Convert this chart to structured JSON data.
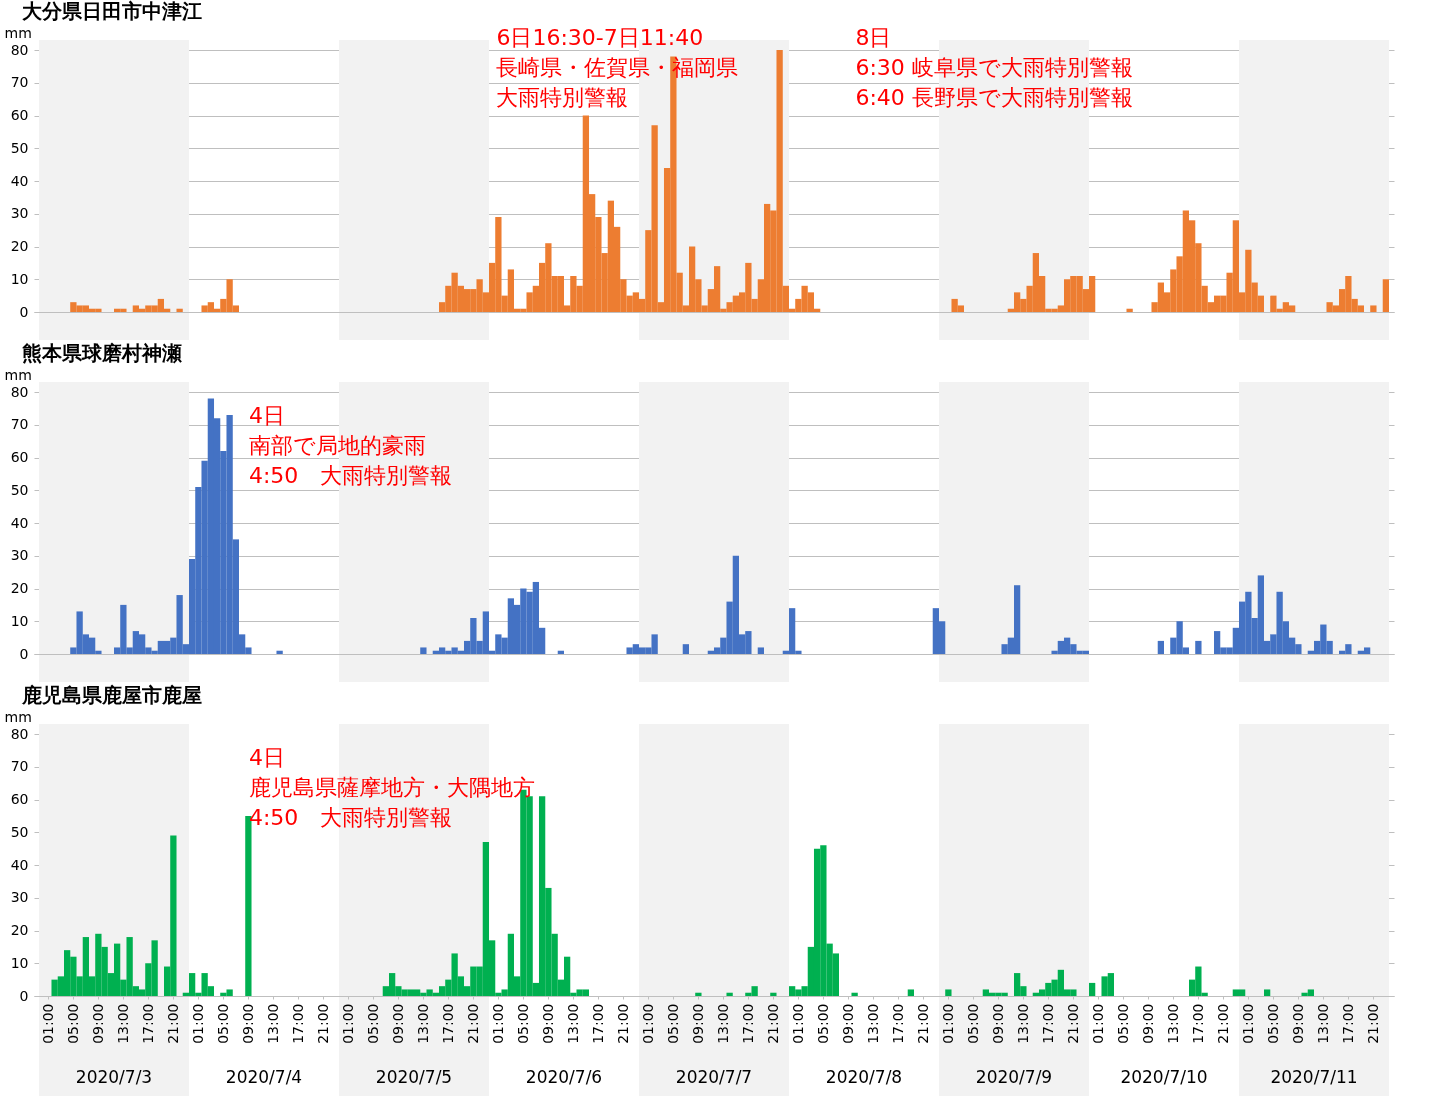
{
  "chart_data": [
    {
      "type": "bar",
      "title": "大分県日田市中津江",
      "ylabel": "mm",
      "grid": "y",
      "tick_labels": "y",
      "x": [
        "2020-07-03T00:00",
        "2020-07-03T01:00",
        "2020-07-03T02:00",
        "2020-07-03T03:00",
        "2020-07-03T04:00",
        "2020-07-03T05:00",
        "2020-07-03T06:00",
        "2020-07-03T07:00",
        "2020-07-03T08:00",
        "2020-07-03T09:00",
        "2020-07-03T10:00",
        "2020-07-03T11:00",
        "2020-07-03T12:00",
        "2020-07-03T13:00",
        "2020-07-03T14:00",
        "2020-07-03T15:00",
        "2020-07-03T16:00",
        "2020-07-03T17:00",
        "2020-07-03T18:00",
        "2020-07-03T19:00",
        "2020-07-03T20:00",
        "2020-07-03T21:00",
        "2020-07-03T22:00",
        "2020-07-03T23:00",
        "2020-07-04T00:00",
        "2020-07-04T01:00",
        "2020-07-04T02:00",
        "2020-07-04T03:00",
        "2020-07-04T04:00",
        "2020-07-04T05:00",
        "2020-07-04T06:00",
        "2020-07-04T07:00",
        "2020-07-04T08:00",
        "2020-07-04T09:00",
        "2020-07-04T10:00",
        "2020-07-04T11:00",
        "2020-07-04T12:00",
        "2020-07-04T13:00",
        "2020-07-04T14:00",
        "2020-07-04T15:00",
        "2020-07-04T16:00",
        "2020-07-04T17:00",
        "2020-07-04T18:00",
        "2020-07-04T19:00",
        "2020-07-04T20:00",
        "2020-07-04T21:00",
        "2020-07-04T22:00",
        "2020-07-04T23:00",
        "2020-07-05T00:00",
        "2020-07-05T01:00",
        "2020-07-05T02:00",
        "2020-07-05T03:00",
        "2020-07-05T04:00",
        "2020-07-05T05:00",
        "2020-07-05T06:00",
        "2020-07-05T07:00",
        "2020-07-05T08:00",
        "2020-07-05T09:00",
        "2020-07-05T10:00",
        "2020-07-05T11:00",
        "2020-07-05T12:00",
        "2020-07-05T13:00",
        "2020-07-05T14:00",
        "2020-07-05T15:00",
        "2020-07-05T16:00",
        "2020-07-05T17:00",
        "2020-07-05T18:00",
        "2020-07-05T19:00",
        "2020-07-05T20:00",
        "2020-07-05T21:00",
        "2020-07-05T22:00",
        "2020-07-05T23:00",
        "2020-07-06T00:00",
        "2020-07-06T01:00",
        "2020-07-06T02:00",
        "2020-07-06T03:00",
        "2020-07-06T04:00",
        "2020-07-06T05:00",
        "2020-07-06T06:00",
        "2020-07-06T07:00",
        "2020-07-06T08:00",
        "2020-07-06T09:00",
        "2020-07-06T10:00",
        "2020-07-06T11:00",
        "2020-07-06T12:00",
        "2020-07-06T13:00",
        "2020-07-06T14:00",
        "2020-07-06T15:00",
        "2020-07-06T16:00",
        "2020-07-06T17:00",
        "2020-07-06T18:00",
        "2020-07-06T19:00",
        "2020-07-06T20:00",
        "2020-07-06T21:00",
        "2020-07-06T22:00",
        "2020-07-06T23:00",
        "2020-07-07T00:00",
        "2020-07-07T01:00",
        "2020-07-07T02:00",
        "2020-07-07T03:00",
        "2020-07-07T04:00",
        "2020-07-07T05:00",
        "2020-07-07T06:00",
        "2020-07-07T07:00",
        "2020-07-07T08:00",
        "2020-07-07T09:00",
        "2020-07-07T10:00",
        "2020-07-07T11:00",
        "2020-07-07T12:00",
        "2020-07-07T13:00",
        "2020-07-07T14:00",
        "2020-07-07T15:00",
        "2020-07-07T16:00",
        "2020-07-07T17:00",
        "2020-07-07T18:00",
        "2020-07-07T19:00",
        "2020-07-07T20:00",
        "2020-07-07T21:00",
        "2020-07-07T22:00",
        "2020-07-07T23:00",
        "2020-07-08T00:00",
        "2020-07-08T01:00",
        "2020-07-08T02:00",
        "2020-07-08T03:00",
        "2020-07-08T04:00",
        "2020-07-08T05:00",
        "2020-07-08T06:00",
        "2020-07-08T07:00",
        "2020-07-08T08:00",
        "2020-07-08T09:00",
        "2020-07-08T10:00",
        "2020-07-08T11:00",
        "2020-07-08T12:00",
        "2020-07-08T13:00",
        "2020-07-08T14:00",
        "2020-07-08T15:00",
        "2020-07-08T16:00",
        "2020-07-08T17:00",
        "2020-07-08T18:00",
        "2020-07-08T19:00",
        "2020-07-08T20:00",
        "2020-07-08T21:00",
        "2020-07-08T22:00",
        "2020-07-08T23:00",
        "2020-07-09T00:00",
        "2020-07-09T01:00",
        "2020-07-09T02:00",
        "2020-07-09T03:00",
        "2020-07-09T04:00",
        "2020-07-09T05:00",
        "2020-07-09T06:00",
        "2020-07-09T07:00",
        "2020-07-09T08:00",
        "2020-07-09T09:00",
        "2020-07-09T10:00",
        "2020-07-09T11:00",
        "2020-07-09T12:00",
        "2020-07-09T13:00",
        "2020-07-09T14:00",
        "2020-07-09T15:00",
        "2020-07-09T16:00",
        "2020-07-09T17:00",
        "2020-07-09T18:00",
        "2020-07-09T19:00",
        "2020-07-09T20:00",
        "2020-07-09T21:00",
        "2020-07-09T22:00",
        "2020-07-09T23:00",
        "2020-07-10T00:00",
        "2020-07-10T01:00",
        "2020-07-10T02:00",
        "2020-07-10T03:00",
        "2020-07-10T04:00",
        "2020-07-10T05:00",
        "2020-07-10T06:00",
        "2020-07-10T07:00",
        "2020-07-10T08:00",
        "2020-07-10T09:00",
        "2020-07-10T10:00",
        "2020-07-10T11:00",
        "2020-07-10T12:00",
        "2020-07-10T13:00",
        "2020-07-10T14:00",
        "2020-07-10T15:00",
        "2020-07-10T16:00",
        "2020-07-10T17:00",
        "2020-07-10T18:00",
        "2020-07-10T19:00",
        "2020-07-10T20:00",
        "2020-07-10T21:00",
        "2020-07-10T22:00",
        "2020-07-10T23:00",
        "2020-07-11T00:00",
        "2020-07-11T01:00",
        "2020-07-11T02:00",
        "2020-07-11T03:00",
        "2020-07-11T04:00",
        "2020-07-11T05:00",
        "2020-07-11T06:00",
        "2020-07-11T07:00",
        "2020-07-11T08:00",
        "2020-07-11T09:00",
        "2020-07-11T10:00",
        "2020-07-11T11:00",
        "2020-07-11T12:00",
        "2020-07-11T13:00",
        "2020-07-11T14:00",
        "2020-07-11T15:00",
        "2020-07-11T16:00",
        "2020-07-11T17:00",
        "2020-07-11T18:00",
        "2020-07-11T19:00",
        "2020-07-11T20:00",
        "2020-07-11T21:00",
        "2020-07-11T22:00",
        "2020-07-11T23:00"
      ],
      "series": [
        {
          "color": "#ed7d31",
          "values": [
            0,
            0,
            0,
            0,
            0,
            3,
            2,
            2,
            1,
            1,
            0,
            0,
            1,
            1,
            0,
            2,
            1,
            2,
            2,
            4,
            1,
            0,
            1,
            0,
            0,
            0,
            2,
            3,
            1,
            4,
            10,
            2,
            0,
            0,
            0,
            0,
            0,
            0,
            0,
            0,
            0,
            0,
            0,
            0,
            0,
            0,
            0,
            0,
            0,
            0,
            0,
            0,
            0,
            0,
            0,
            0,
            0,
            0,
            0,
            0,
            0,
            0,
            0,
            0,
            3,
            8,
            12,
            8,
            7,
            7,
            10,
            6,
            15,
            29,
            5,
            13,
            1,
            1,
            6,
            8,
            15,
            21,
            11,
            11,
            2,
            11,
            8,
            60,
            36,
            29,
            18,
            34,
            26,
            10,
            5,
            6,
            4,
            25,
            57,
            3,
            44,
            78,
            12,
            2,
            20,
            10,
            2,
            7,
            14,
            1,
            3,
            5,
            6,
            15,
            4,
            10,
            33,
            31,
            80,
            8,
            1,
            4,
            8,
            6,
            1,
            0,
            0,
            0,
            0,
            0,
            0,
            0,
            0,
            0,
            0,
            0,
            0,
            0,
            0,
            0,
            0,
            0,
            0,
            0,
            0,
            0,
            4,
            2,
            0,
            0,
            0,
            0,
            0,
            0,
            0,
            1,
            6,
            4,
            8,
            18,
            11,
            1,
            1,
            2,
            10,
            11,
            11,
            7,
            11,
            0,
            0,
            0,
            0,
            0,
            1,
            0,
            0,
            0,
            3,
            9,
            6,
            13,
            17,
            31,
            28,
            21,
            8,
            3,
            5,
            5,
            12,
            28,
            6,
            19,
            9,
            5,
            0,
            5,
            1,
            3,
            2,
            0,
            0,
            0,
            0,
            0,
            3,
            2,
            7,
            11,
            4,
            2,
            0,
            2,
            0,
            10
          ]
        }
      ],
      "xlim": [
        "2020-07-02T23:30",
        "2020-07-11T23:30"
      ],
      "ylim": [
        0,
        80
      ],
      "yticks": [
        0,
        10,
        20,
        30,
        40,
        50,
        60,
        70,
        80
      ],
      "bands": [
        {
          "axis": "x",
          "from": "2020-07-02T23:30",
          "to": "2020-07-03T23:30",
          "color": "#f2f2f2"
        },
        {
          "axis": "x",
          "from": "2020-07-04T23:30",
          "to": "2020-07-05T23:30",
          "color": "#f2f2f2"
        },
        {
          "axis": "x",
          "from": "2020-07-06T23:30",
          "to": "2020-07-07T23:30",
          "color": "#f2f2f2"
        },
        {
          "axis": "x",
          "from": "2020-07-08T23:30",
          "to": "2020-07-09T23:30",
          "color": "#f2f2f2"
        },
        {
          "axis": "x",
          "from": "2020-07-10T23:30",
          "to": "2020-07-11T23:30",
          "color": "#f2f2f2"
        }
      ],
      "annotations": [
        "6日16:30-7日11:40",
        "長崎県・佐賀県・福岡県",
        "大雨特別警報",
        "8日",
        "6:30 岐阜県で大雨特別警報",
        "6:40 長野県で大雨特別警報"
      ]
    },
    {
      "type": "bar",
      "title": "熊本県球磨村神瀬",
      "ylabel": "mm",
      "grid": "y",
      "tick_labels": "y",
      "x": [
        "2020-07-03T00:00",
        "2020-07-03T01:00",
        "2020-07-03T02:00",
        "2020-07-03T03:00",
        "2020-07-03T04:00",
        "2020-07-03T05:00",
        "2020-07-03T06:00",
        "2020-07-03T07:00",
        "2020-07-03T08:00",
        "2020-07-03T09:00",
        "2020-07-03T10:00",
        "2020-07-03T11:00",
        "2020-07-03T12:00",
        "2020-07-03T13:00",
        "2020-07-03T14:00",
        "2020-07-03T15:00",
        "2020-07-03T16:00",
        "2020-07-03T17:00",
        "2020-07-03T18:00",
        "2020-07-03T19:00",
        "2020-07-03T20:00",
        "2020-07-03T21:00",
        "2020-07-03T22:00",
        "2020-07-03T23:00",
        "2020-07-04T00:00",
        "2020-07-04T01:00",
        "2020-07-04T02:00",
        "2020-07-04T03:00",
        "2020-07-04T04:00",
        "2020-07-04T05:00",
        "2020-07-04T06:00",
        "2020-07-04T07:00",
        "2020-07-04T08:00",
        "2020-07-04T09:00",
        "2020-07-04T10:00",
        "2020-07-04T11:00",
        "2020-07-04T12:00",
        "2020-07-04T13:00",
        "2020-07-04T14:00",
        "2020-07-04T15:00",
        "2020-07-04T16:00",
        "2020-07-04T17:00",
        "2020-07-04T18:00",
        "2020-07-04T19:00",
        "2020-07-04T20:00",
        "2020-07-04T21:00",
        "2020-07-04T22:00",
        "2020-07-04T23:00",
        "2020-07-05T00:00",
        "2020-07-05T01:00",
        "2020-07-05T02:00",
        "2020-07-05T03:00",
        "2020-07-05T04:00",
        "2020-07-05T05:00",
        "2020-07-05T06:00",
        "2020-07-05T07:00",
        "2020-07-05T08:00",
        "2020-07-05T09:00",
        "2020-07-05T10:00",
        "2020-07-05T11:00",
        "2020-07-05T12:00",
        "2020-07-05T13:00",
        "2020-07-05T14:00",
        "2020-07-05T15:00",
        "2020-07-05T16:00",
        "2020-07-05T17:00",
        "2020-07-05T18:00",
        "2020-07-05T19:00",
        "2020-07-05T20:00",
        "2020-07-05T21:00",
        "2020-07-05T22:00",
        "2020-07-05T23:00",
        "2020-07-06T00:00",
        "2020-07-06T01:00",
        "2020-07-06T02:00",
        "2020-07-06T03:00",
        "2020-07-06T04:00",
        "2020-07-06T05:00",
        "2020-07-06T06:00",
        "2020-07-06T07:00",
        "2020-07-06T08:00",
        "2020-07-06T09:00",
        "2020-07-06T10:00",
        "2020-07-06T11:00",
        "2020-07-06T12:00",
        "2020-07-06T13:00",
        "2020-07-06T14:00",
        "2020-07-06T15:00",
        "2020-07-06T16:00",
        "2020-07-06T17:00",
        "2020-07-06T18:00",
        "2020-07-06T19:00",
        "2020-07-06T20:00",
        "2020-07-06T21:00",
        "2020-07-06T22:00",
        "2020-07-06T23:00",
        "2020-07-07T00:00",
        "2020-07-07T01:00",
        "2020-07-07T02:00",
        "2020-07-07T03:00",
        "2020-07-07T04:00",
        "2020-07-07T05:00",
        "2020-07-07T06:00",
        "2020-07-07T07:00",
        "2020-07-07T08:00",
        "2020-07-07T09:00",
        "2020-07-07T10:00",
        "2020-07-07T11:00",
        "2020-07-07T12:00",
        "2020-07-07T13:00",
        "2020-07-07T14:00",
        "2020-07-07T15:00",
        "2020-07-07T16:00",
        "2020-07-07T17:00",
        "2020-07-07T18:00",
        "2020-07-07T19:00",
        "2020-07-07T20:00",
        "2020-07-07T21:00",
        "2020-07-07T22:00",
        "2020-07-07T23:00",
        "2020-07-08T00:00",
        "2020-07-08T01:00",
        "2020-07-08T02:00",
        "2020-07-08T03:00",
        "2020-07-08T04:00",
        "2020-07-08T05:00",
        "2020-07-08T06:00",
        "2020-07-08T07:00",
        "2020-07-08T08:00",
        "2020-07-08T09:00",
        "2020-07-08T10:00",
        "2020-07-08T11:00",
        "2020-07-08T12:00",
        "2020-07-08T13:00",
        "2020-07-08T14:00",
        "2020-07-08T15:00",
        "2020-07-08T16:00",
        "2020-07-08T17:00",
        "2020-07-08T18:00",
        "2020-07-08T19:00",
        "2020-07-08T20:00",
        "2020-07-08T21:00",
        "2020-07-08T22:00",
        "2020-07-08T23:00",
        "2020-07-09T00:00",
        "2020-07-09T01:00",
        "2020-07-09T02:00",
        "2020-07-09T03:00",
        "2020-07-09T04:00",
        "2020-07-09T05:00",
        "2020-07-09T06:00",
        "2020-07-09T07:00",
        "2020-07-09T08:00",
        "2020-07-09T09:00",
        "2020-07-09T10:00",
        "2020-07-09T11:00",
        "2020-07-09T12:00",
        "2020-07-09T13:00",
        "2020-07-09T14:00",
        "2020-07-09T15:00",
        "2020-07-09T16:00",
        "2020-07-09T17:00",
        "2020-07-09T18:00",
        "2020-07-09T19:00",
        "2020-07-09T20:00",
        "2020-07-09T21:00",
        "2020-07-09T22:00",
        "2020-07-09T23:00",
        "2020-07-10T00:00",
        "2020-07-10T01:00",
        "2020-07-10T02:00",
        "2020-07-10T03:00",
        "2020-07-10T04:00",
        "2020-07-10T05:00",
        "2020-07-10T06:00",
        "2020-07-10T07:00",
        "2020-07-10T08:00",
        "2020-07-10T09:00",
        "2020-07-10T10:00",
        "2020-07-10T11:00",
        "2020-07-10T12:00",
        "2020-07-10T13:00",
        "2020-07-10T14:00",
        "2020-07-10T15:00",
        "2020-07-10T16:00",
        "2020-07-10T17:00",
        "2020-07-10T18:00",
        "2020-07-10T19:00",
        "2020-07-10T20:00",
        "2020-07-10T21:00",
        "2020-07-10T22:00",
        "2020-07-10T23:00",
        "2020-07-11T00:00",
        "2020-07-11T01:00",
        "2020-07-11T02:00",
        "2020-07-11T03:00",
        "2020-07-11T04:00",
        "2020-07-11T05:00",
        "2020-07-11T06:00",
        "2020-07-11T07:00",
        "2020-07-11T08:00",
        "2020-07-11T09:00",
        "2020-07-11T10:00",
        "2020-07-11T11:00",
        "2020-07-11T12:00",
        "2020-07-11T13:00",
        "2020-07-11T14:00",
        "2020-07-11T15:00",
        "2020-07-11T16:00",
        "2020-07-11T17:00",
        "2020-07-11T18:00",
        "2020-07-11T19:00",
        "2020-07-11T20:00",
        "2020-07-11T21:00",
        "2020-07-11T22:00",
        "2020-07-11T23:00"
      ],
      "series": [
        {
          "color": "#4472c4",
          "values": [
            0,
            0,
            0,
            0,
            0,
            2,
            13,
            6,
            5,
            1,
            0,
            0,
            2,
            15,
            2,
            7,
            6,
            2,
            1,
            4,
            4,
            5,
            18,
            3,
            29,
            51,
            59,
            78,
            72,
            62,
            73,
            35,
            6,
            2,
            0,
            0,
            0,
            0,
            1,
            0,
            0,
            0,
            0,
            0,
            0,
            0,
            0,
            0,
            0,
            0,
            0,
            0,
            0,
            0,
            0,
            0,
            0,
            0,
            0,
            0,
            0,
            2,
            0,
            1,
            2,
            1,
            2,
            1,
            4,
            11,
            4,
            13,
            1,
            6,
            5,
            17,
            15,
            20,
            19,
            22,
            8,
            0,
            0,
            1,
            0,
            0,
            0,
            0,
            0,
            0,
            0,
            0,
            0,
            0,
            2,
            3,
            2,
            2,
            6,
            0,
            0,
            0,
            0,
            3,
            0,
            0,
            0,
            1,
            2,
            5,
            16,
            30,
            6,
            7,
            0,
            2,
            0,
            0,
            0,
            1,
            14,
            1,
            0,
            0,
            0,
            0,
            0,
            0,
            0,
            0,
            0,
            0,
            0,
            0,
            0,
            0,
            0,
            0,
            0,
            0,
            0,
            0,
            0,
            14,
            10,
            0,
            0,
            0,
            0,
            0,
            0,
            0,
            0,
            0,
            3,
            5,
            21,
            0,
            0,
            0,
            0,
            0,
            1,
            4,
            5,
            3,
            1,
            1,
            0,
            0,
            0,
            0,
            0,
            0,
            0,
            0,
            0,
            0,
            0,
            4,
            0,
            5,
            10,
            2,
            0,
            4,
            0,
            0,
            7,
            2,
            2,
            8,
            16,
            19,
            11,
            24,
            4,
            6,
            19,
            10,
            5,
            3,
            0,
            1,
            4,
            9,
            4,
            0,
            1,
            3,
            0,
            1,
            2,
            0,
            0,
            0
          ]
        }
      ],
      "xlim": [
        "2020-07-02T23:30",
        "2020-07-11T23:30"
      ],
      "ylim": [
        0,
        80
      ],
      "yticks": [
        0,
        10,
        20,
        30,
        40,
        50,
        60,
        70,
        80
      ],
      "bands": [
        {
          "axis": "x",
          "from": "2020-07-02T23:30",
          "to": "2020-07-03T23:30",
          "color": "#f2f2f2"
        },
        {
          "axis": "x",
          "from": "2020-07-04T23:30",
          "to": "2020-07-05T23:30",
          "color": "#f2f2f2"
        },
        {
          "axis": "x",
          "from": "2020-07-06T23:30",
          "to": "2020-07-07T23:30",
          "color": "#f2f2f2"
        },
        {
          "axis": "x",
          "from": "2020-07-08T23:30",
          "to": "2020-07-09T23:30",
          "color": "#f2f2f2"
        },
        {
          "axis": "x",
          "from": "2020-07-10T23:30",
          "to": "2020-07-11T23:30",
          "color": "#f2f2f2"
        }
      ],
      "annotations": [
        "4日",
        "南部で局地的豪雨",
        "4:50　大雨特別警報"
      ]
    },
    {
      "type": "bar",
      "title": "鹿児島県鹿屋市鹿屋",
      "ylabel": "mm",
      "grid": "y",
      "x": [
        "2020-07-03T00:00",
        "2020-07-03T01:00",
        "2020-07-03T02:00",
        "2020-07-03T03:00",
        "2020-07-03T04:00",
        "2020-07-03T05:00",
        "2020-07-03T06:00",
        "2020-07-03T07:00",
        "2020-07-03T08:00",
        "2020-07-03T09:00",
        "2020-07-03T10:00",
        "2020-07-03T11:00",
        "2020-07-03T12:00",
        "2020-07-03T13:00",
        "2020-07-03T14:00",
        "2020-07-03T15:00",
        "2020-07-03T16:00",
        "2020-07-03T17:00",
        "2020-07-03T18:00",
        "2020-07-03T19:00",
        "2020-07-03T20:00",
        "2020-07-03T21:00",
        "2020-07-03T22:00",
        "2020-07-03T23:00",
        "2020-07-04T00:00",
        "2020-07-04T01:00",
        "2020-07-04T02:00",
        "2020-07-04T03:00",
        "2020-07-04T04:00",
        "2020-07-04T05:00",
        "2020-07-04T06:00",
        "2020-07-04T07:00",
        "2020-07-04T08:00",
        "2020-07-04T09:00",
        "2020-07-04T10:00",
        "2020-07-04T11:00",
        "2020-07-04T12:00",
        "2020-07-04T13:00",
        "2020-07-04T14:00",
        "2020-07-04T15:00",
        "2020-07-04T16:00",
        "2020-07-04T17:00",
        "2020-07-04T18:00",
        "2020-07-04T19:00",
        "2020-07-04T20:00",
        "2020-07-04T21:00",
        "2020-07-04T22:00",
        "2020-07-04T23:00",
        "2020-07-05T00:00",
        "2020-07-05T01:00",
        "2020-07-05T02:00",
        "2020-07-05T03:00",
        "2020-07-05T04:00",
        "2020-07-05T05:00",
        "2020-07-05T06:00",
        "2020-07-05T07:00",
        "2020-07-05T08:00",
        "2020-07-05T09:00",
        "2020-07-05T10:00",
        "2020-07-05T11:00",
        "2020-07-05T12:00",
        "2020-07-05T13:00",
        "2020-07-05T14:00",
        "2020-07-05T15:00",
        "2020-07-05T16:00",
        "2020-07-05T17:00",
        "2020-07-05T18:00",
        "2020-07-05T19:00",
        "2020-07-05T20:00",
        "2020-07-05T21:00",
        "2020-07-05T22:00",
        "2020-07-05T23:00",
        "2020-07-06T00:00",
        "2020-07-06T01:00",
        "2020-07-06T02:00",
        "2020-07-06T03:00",
        "2020-07-06T04:00",
        "2020-07-06T05:00",
        "2020-07-06T06:00",
        "2020-07-06T07:00",
        "2020-07-06T08:00",
        "2020-07-06T09:00",
        "2020-07-06T10:00",
        "2020-07-06T11:00",
        "2020-07-06T12:00",
        "2020-07-06T13:00",
        "2020-07-06T14:00",
        "2020-07-06T15:00",
        "2020-07-06T16:00",
        "2020-07-06T17:00",
        "2020-07-06T18:00",
        "2020-07-06T19:00",
        "2020-07-06T20:00",
        "2020-07-06T21:00",
        "2020-07-06T22:00",
        "2020-07-06T23:00",
        "2020-07-07T00:00",
        "2020-07-07T01:00",
        "2020-07-07T02:00",
        "2020-07-07T03:00",
        "2020-07-07T04:00",
        "2020-07-07T05:00",
        "2020-07-07T06:00",
        "2020-07-07T07:00",
        "2020-07-07T08:00",
        "2020-07-07T09:00",
        "2020-07-07T10:00",
        "2020-07-07T11:00",
        "2020-07-07T12:00",
        "2020-07-07T13:00",
        "2020-07-07T14:00",
        "2020-07-07T15:00",
        "2020-07-07T16:00",
        "2020-07-07T17:00",
        "2020-07-07T18:00",
        "2020-07-07T19:00",
        "2020-07-07T20:00",
        "2020-07-07T21:00",
        "2020-07-07T22:00",
        "2020-07-07T23:00",
        "2020-07-08T00:00",
        "2020-07-08T01:00",
        "2020-07-08T02:00",
        "2020-07-08T03:00",
        "2020-07-08T04:00",
        "2020-07-08T05:00",
        "2020-07-08T06:00",
        "2020-07-08T07:00",
        "2020-07-08T08:00",
        "2020-07-08T09:00",
        "2020-07-08T10:00",
        "2020-07-08T11:00",
        "2020-07-08T12:00",
        "2020-07-08T13:00",
        "2020-07-08T14:00",
        "2020-07-08T15:00",
        "2020-07-08T16:00",
        "2020-07-08T17:00",
        "2020-07-08T18:00",
        "2020-07-08T19:00",
        "2020-07-08T20:00",
        "2020-07-08T21:00",
        "2020-07-08T22:00",
        "2020-07-08T23:00",
        "2020-07-09T00:00",
        "2020-07-09T01:00",
        "2020-07-09T02:00",
        "2020-07-09T03:00",
        "2020-07-09T04:00",
        "2020-07-09T05:00",
        "2020-07-09T06:00",
        "2020-07-09T07:00",
        "2020-07-09T08:00",
        "2020-07-09T09:00",
        "2020-07-09T10:00",
        "2020-07-09T11:00",
        "2020-07-09T12:00",
        "2020-07-09T13:00",
        "2020-07-09T14:00",
        "2020-07-09T15:00",
        "2020-07-09T16:00",
        "2020-07-09T17:00",
        "2020-07-09T18:00",
        "2020-07-09T19:00",
        "2020-07-09T20:00",
        "2020-07-09T21:00",
        "2020-07-09T22:00",
        "2020-07-09T23:00",
        "2020-07-10T00:00",
        "2020-07-10T01:00",
        "2020-07-10T02:00",
        "2020-07-10T03:00",
        "2020-07-10T04:00",
        "2020-07-10T05:00",
        "2020-07-10T06:00",
        "2020-07-10T07:00",
        "2020-07-10T08:00",
        "2020-07-10T09:00",
        "2020-07-10T10:00",
        "2020-07-10T11:00",
        "2020-07-10T12:00",
        "2020-07-10T13:00",
        "2020-07-10T14:00",
        "2020-07-10T15:00",
        "2020-07-10T16:00",
        "2020-07-10T17:00",
        "2020-07-10T18:00",
        "2020-07-10T19:00",
        "2020-07-10T20:00",
        "2020-07-10T21:00",
        "2020-07-10T22:00",
        "2020-07-10T23:00",
        "2020-07-11T00:00",
        "2020-07-11T01:00",
        "2020-07-11T02:00",
        "2020-07-11T03:00",
        "2020-07-11T04:00",
        "2020-07-11T05:00",
        "2020-07-11T06:00",
        "2020-07-11T07:00",
        "2020-07-11T08:00",
        "2020-07-11T09:00",
        "2020-07-11T10:00",
        "2020-07-11T11:00",
        "2020-07-11T12:00",
        "2020-07-11T13:00",
        "2020-07-11T14:00",
        "2020-07-11T15:00",
        "2020-07-11T16:00",
        "2020-07-11T17:00",
        "2020-07-11T18:00",
        "2020-07-11T19:00",
        "2020-07-11T20:00",
        "2020-07-11T21:00",
        "2020-07-11T22:00",
        "2020-07-11T23:00"
      ],
      "series": [
        {
          "color": "#00b050",
          "values": [
            0,
            0,
            5,
            6,
            14,
            12,
            6,
            18,
            6,
            19,
            15,
            7,
            16,
            5,
            18,
            3,
            2,
            10,
            17,
            0,
            9,
            49,
            0,
            1,
            7,
            1,
            7,
            3,
            0,
            1,
            2,
            0,
            0,
            55,
            0,
            0,
            0,
            0,
            0,
            0,
            0,
            0,
            0,
            0,
            0,
            0,
            0,
            0,
            0,
            0,
            0,
            0,
            0,
            0,
            0,
            3,
            7,
            3,
            2,
            2,
            2,
            1,
            2,
            1,
            3,
            5,
            13,
            6,
            3,
            9,
            9,
            47,
            17,
            1,
            2,
            19,
            6,
            63,
            61,
            4,
            61,
            33,
            19,
            5,
            12,
            1,
            2,
            2,
            0,
            0,
            0,
            0,
            0,
            0,
            0,
            0,
            0,
            0,
            0,
            0,
            0,
            0,
            0,
            0,
            0,
            1,
            0,
            0,
            0,
            0,
            1,
            0,
            0,
            1,
            3,
            0,
            0,
            1,
            0,
            0,
            3,
            2,
            3,
            15,
            45,
            46,
            16,
            13,
            0,
            0,
            1,
            0,
            0,
            0,
            0,
            0,
            0,
            0,
            0,
            2,
            0,
            0,
            0,
            0,
            0,
            2,
            0,
            0,
            0,
            0,
            0,
            2,
            1,
            1,
            1,
            0,
            7,
            3,
            0,
            1,
            2,
            4,
            5,
            8,
            2,
            2,
            0,
            0,
            4,
            0,
            6,
            7,
            0,
            0,
            0,
            0,
            0,
            0,
            0,
            0,
            0,
            0,
            0,
            0,
            5,
            9,
            1,
            0,
            0,
            0,
            0,
            2,
            2,
            0,
            0,
            0,
            2,
            0,
            0,
            0,
            0,
            0,
            1,
            2,
            0,
            0,
            0,
            0,
            0,
            0,
            0,
            0,
            0,
            0,
            0,
            0
          ]
        }
      ],
      "xlim": [
        "2020-07-02T23:30",
        "2020-07-11T23:30"
      ],
      "xticks": [
        {
          "value": "2020-07-03T01:00",
          "label": "01:00"
        },
        {
          "value": "2020-07-03T05:00",
          "label": "05:00"
        },
        {
          "value": "2020-07-03T09:00",
          "label": "09:00"
        },
        {
          "value": "2020-07-03T13:00",
          "label": "13:00"
        },
        {
          "value": "2020-07-03T17:00",
          "label": "17:00"
        },
        {
          "value": "2020-07-03T21:00",
          "label": "21:00"
        },
        {
          "value": "2020-07-04T01:00",
          "label": "01:00"
        },
        {
          "value": "2020-07-04T05:00",
          "label": "05:00"
        },
        {
          "value": "2020-07-04T09:00",
          "label": "09:00"
        },
        {
          "value": "2020-07-04T13:00",
          "label": "13:00"
        },
        {
          "value": "2020-07-04T17:00",
          "label": "17:00"
        },
        {
          "value": "2020-07-04T21:00",
          "label": "21:00"
        },
        {
          "value": "2020-07-05T01:00",
          "label": "01:00"
        },
        {
          "value": "2020-07-05T05:00",
          "label": "05:00"
        },
        {
          "value": "2020-07-05T09:00",
          "label": "09:00"
        },
        {
          "value": "2020-07-05T13:00",
          "label": "13:00"
        },
        {
          "value": "2020-07-05T17:00",
          "label": "17:00"
        },
        {
          "value": "2020-07-05T21:00",
          "label": "21:00"
        },
        {
          "value": "2020-07-06T01:00",
          "label": "01:00"
        },
        {
          "value": "2020-07-06T05:00",
          "label": "05:00"
        },
        {
          "value": "2020-07-06T09:00",
          "label": "09:00"
        },
        {
          "value": "2020-07-06T13:00",
          "label": "13:00"
        },
        {
          "value": "2020-07-06T17:00",
          "label": "17:00"
        },
        {
          "value": "2020-07-06T21:00",
          "label": "21:00"
        },
        {
          "value": "2020-07-07T01:00",
          "label": "01:00"
        },
        {
          "value": "2020-07-07T05:00",
          "label": "05:00"
        },
        {
          "value": "2020-07-07T09:00",
          "label": "09:00"
        },
        {
          "value": "2020-07-07T13:00",
          "label": "13:00"
        },
        {
          "value": "2020-07-07T17:00",
          "label": "17:00"
        },
        {
          "value": "2020-07-07T21:00",
          "label": "21:00"
        },
        {
          "value": "2020-07-08T01:00",
          "label": "01:00"
        },
        {
          "value": "2020-07-08T05:00",
          "label": "05:00"
        },
        {
          "value": "2020-07-08T09:00",
          "label": "09:00"
        },
        {
          "value": "2020-07-08T13:00",
          "label": "13:00"
        },
        {
          "value": "2020-07-08T17:00",
          "label": "17:00"
        },
        {
          "value": "2020-07-08T21:00",
          "label": "21:00"
        },
        {
          "value": "2020-07-09T01:00",
          "label": "01:00"
        },
        {
          "value": "2020-07-09T05:00",
          "label": "05:00"
        },
        {
          "value": "2020-07-09T09:00",
          "label": "09:00"
        },
        {
          "value": "2020-07-09T13:00",
          "label": "13:00"
        },
        {
          "value": "2020-07-09T17:00",
          "label": "17:00"
        },
        {
          "value": "2020-07-09T21:00",
          "label": "21:00"
        },
        {
          "value": "2020-07-10T01:00",
          "label": "01:00"
        },
        {
          "value": "2020-07-10T05:00",
          "label": "05:00"
        },
        {
          "value": "2020-07-10T09:00",
          "label": "09:00"
        },
        {
          "value": "2020-07-10T13:00",
          "label": "13:00"
        },
        {
          "value": "2020-07-10T17:00",
          "label": "17:00"
        },
        {
          "value": "2020-07-10T21:00",
          "label": "21:00"
        },
        {
          "value": "2020-07-11T01:00",
          "label": "01:00"
        },
        {
          "value": "2020-07-11T05:00",
          "label": "05:00"
        },
        {
          "value": "2020-07-11T09:00",
          "label": "09:00"
        },
        {
          "value": "2020-07-11T13:00",
          "label": "13:00"
        },
        {
          "value": "2020-07-11T17:00",
          "label": "17:00"
        },
        {
          "value": "2020-07-11T21:00",
          "label": "21:00"
        }
      ],
      "ylim": [
        0,
        80
      ],
      "yticks": [
        0,
        10,
        20,
        30,
        40,
        50,
        60,
        70,
        80
      ],
      "bands": [
        {
          "axis": "x",
          "from": "2020-07-02T23:30",
          "to": "2020-07-03T23:30",
          "color": "#f2f2f2",
          "label": "2020/7/3"
        },
        {
          "axis": "x",
          "from": "2020-07-03T23:30",
          "to": "2020-07-04T23:30",
          "color": "#ffffff",
          "label": "2020/7/4"
        },
        {
          "axis": "x",
          "from": "2020-07-04T23:30",
          "to": "2020-07-05T23:30",
          "color": "#f2f2f2",
          "label": "2020/7/5"
        },
        {
          "axis": "x",
          "from": "2020-07-05T23:30",
          "to": "2020-07-06T23:30",
          "color": "#ffffff",
          "label": "2020/7/6"
        },
        {
          "axis": "x",
          "from": "2020-07-06T23:30",
          "to": "2020-07-07T23:30",
          "color": "#f2f2f2",
          "label": "2020/7/7"
        },
        {
          "axis": "x",
          "from": "2020-07-07T23:30",
          "to": "2020-07-08T23:30",
          "color": "#ffffff",
          "label": "2020/7/8"
        },
        {
          "axis": "x",
          "from": "2020-07-08T23:30",
          "to": "2020-07-09T23:30",
          "color": "#f2f2f2",
          "label": "2020/7/9"
        },
        {
          "axis": "x",
          "from": "2020-07-09T23:30",
          "to": "2020-07-10T23:30",
          "color": "#ffffff",
          "label": "2020/7/10"
        },
        {
          "axis": "x",
          "from": "2020-07-10T23:30",
          "to": "2020-07-11T23:30",
          "color": "#f2f2f2",
          "label": "2020/7/11"
        }
      ],
      "annotations": [
        "4日",
        "鹿児島県薩摩地方・大隅地方",
        "4:50　大雨特別警報"
      ]
    }
  ]
}
